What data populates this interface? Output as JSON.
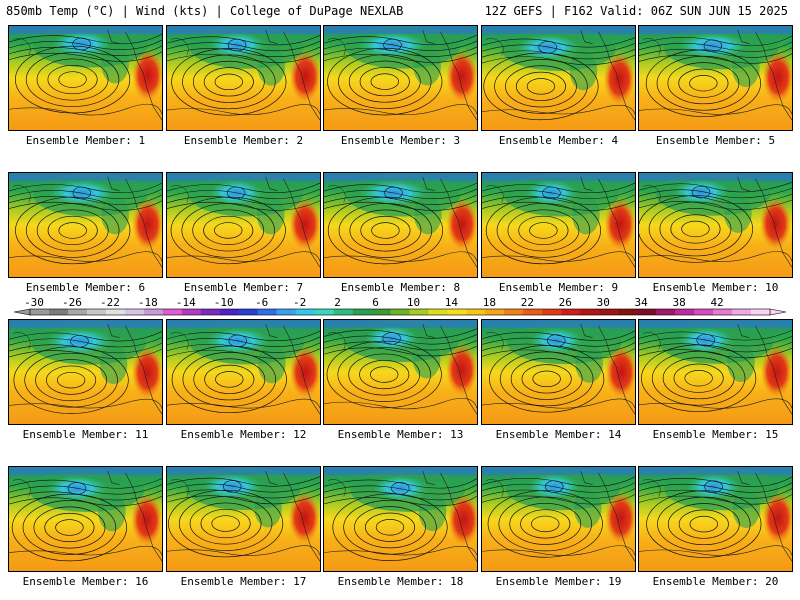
{
  "header": {
    "left_title": "850mb Temp (°C) | Wind (kts) | College of DuPage NEXLAB",
    "right_title": "12Z GEFS | F162 Valid: 06Z SUN JUN 15 2025"
  },
  "panels": [
    {
      "label": "Ensemble Member: 1"
    },
    {
      "label": "Ensemble Member: 2"
    },
    {
      "label": "Ensemble Member: 3"
    },
    {
      "label": "Ensemble Member: 4"
    },
    {
      "label": "Ensemble Member: 5"
    },
    {
      "label": "Ensemble Member: 6"
    },
    {
      "label": "Ensemble Member: 7"
    },
    {
      "label": "Ensemble Member: 8"
    },
    {
      "label": "Ensemble Member: 9"
    },
    {
      "label": "Ensemble Member: 10"
    },
    {
      "label": "Ensemble Member: 11"
    },
    {
      "label": "Ensemble Member: 12"
    },
    {
      "label": "Ensemble Member: 13"
    },
    {
      "label": "Ensemble Member: 14"
    },
    {
      "label": "Ensemble Member: 15"
    },
    {
      "label": "Ensemble Member: 16"
    },
    {
      "label": "Ensemble Member: 17"
    },
    {
      "label": "Ensemble Member: 18"
    },
    {
      "label": "Ensemble Member: 19"
    },
    {
      "label": "Ensemble Member: 20"
    }
  ],
  "colorbar": {
    "tick_labels": [
      "-30",
      "-26",
      "-22",
      "-18",
      "-14",
      "-10",
      "-6",
      "-2",
      "2",
      "6",
      "10",
      "14",
      "18",
      "22",
      "26",
      "30",
      "34",
      "38",
      "42"
    ],
    "colors": [
      "#9a9a9a",
      "#7d7d7d",
      "#a7a7a7",
      "#c8c8c8",
      "#e0e0e0",
      "#d9c3e6",
      "#c79bd9",
      "#e05ad4",
      "#b33cc6",
      "#7d2ac0",
      "#4f22c8",
      "#2a3fd6",
      "#2f6fe8",
      "#3aa0f0",
      "#35c8e8",
      "#3ad6c0",
      "#2cc080",
      "#2aa050",
      "#3a9a3a",
      "#6ab32a",
      "#a8cc22",
      "#dcdc1e",
      "#f6e01a",
      "#f8c418",
      "#f8a416",
      "#f28014",
      "#ec5c14",
      "#e23a16",
      "#d01e1e",
      "#b41616",
      "#a01414",
      "#8a1010",
      "#7a0e2c",
      "#a0186a",
      "#c02a9c",
      "#d84cc0",
      "#e87ad4",
      "#f2a8e4",
      "#f8d4f2"
    ]
  }
}
